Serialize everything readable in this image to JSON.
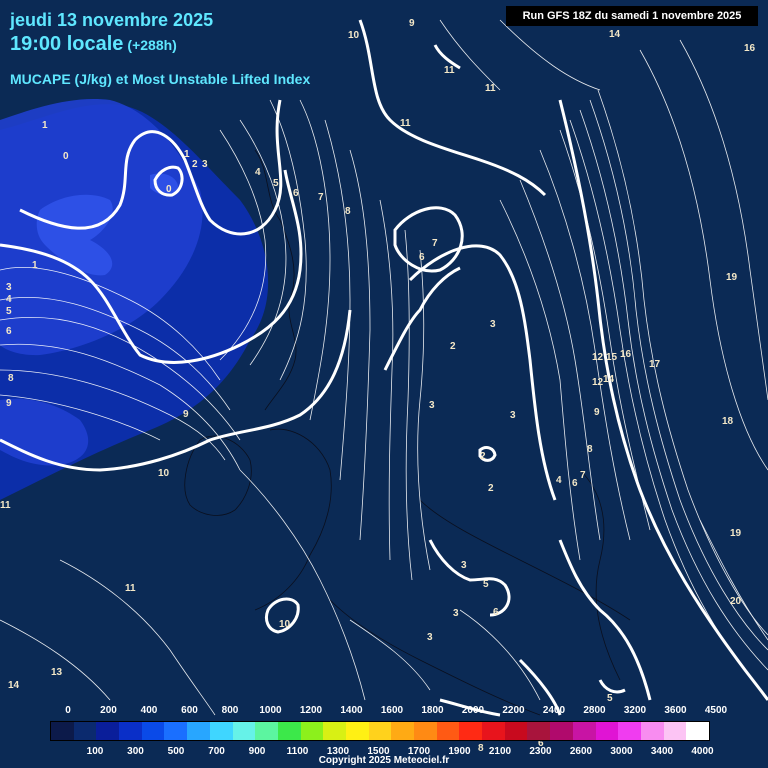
{
  "header": {
    "date": "jeudi 13 novembre 2025",
    "time": "19:00 locale",
    "offset": "(+288h)",
    "field": "MUCAPE (J/kg) et Most Unstable Lifted Index",
    "run": "Run GFS 18Z du samedi 1 novembre 2025"
  },
  "colors": {
    "background": "#0b2a55",
    "title_text": "#5fe7ff",
    "contour": "#ffffff",
    "cape_low": "#0d2fb8",
    "cape_mid": "#1f3fcf",
    "cape_high": "#2d50e6"
  },
  "legend": {
    "top_labels": [
      "0",
      "200",
      "400",
      "600",
      "800",
      "1000",
      "1200",
      "1400",
      "1600",
      "1800",
      "2000",
      "2200",
      "2400",
      "2800",
      "3200",
      "3600",
      "4500"
    ],
    "bottom_labels": [
      "100",
      "300",
      "500",
      "700",
      "900",
      "1100",
      "1300",
      "1500",
      "1700",
      "1900",
      "2100",
      "2300",
      "2600",
      "3000",
      "3400",
      "4000"
    ],
    "swatches": [
      "#0c1a4a",
      "#0b2a6e",
      "#0a1e9a",
      "#0a2fc8",
      "#0a4ae8",
      "#1a6fff",
      "#28a6ff",
      "#3fd6ff",
      "#66f2e8",
      "#5cf5a0",
      "#3ce84a",
      "#8cf01c",
      "#d8f014",
      "#fff014",
      "#ffd21c",
      "#ffaa14",
      "#ff8a14",
      "#ff5a14",
      "#ff2a14",
      "#e8141c",
      "#c80a1e",
      "#a8143c",
      "#b00a6c",
      "#c814a4",
      "#e014d4",
      "#f03cf0",
      "#f88cf0",
      "#fcc4f4",
      "#ffffff"
    ]
  },
  "contour_labels": [
    {
      "text": "1"
    },
    {
      "text": "0"
    },
    {
      "text": "0"
    },
    {
      "text": "1"
    },
    {
      "text": "2"
    },
    {
      "text": "3"
    },
    {
      "text": "4"
    },
    {
      "text": "5"
    },
    {
      "text": "6"
    },
    {
      "text": "7"
    },
    {
      "text": "8"
    },
    {
      "text": "1"
    },
    {
      "text": "3"
    },
    {
      "text": "4"
    },
    {
      "text": "5"
    },
    {
      "text": "6"
    },
    {
      "text": "8"
    },
    {
      "text": "9"
    },
    {
      "text": "9"
    },
    {
      "text": "10"
    },
    {
      "text": "11"
    },
    {
      "text": "11"
    },
    {
      "text": "13"
    },
    {
      "text": "14"
    },
    {
      "text": "10"
    },
    {
      "text": "9"
    },
    {
      "text": "11"
    },
    {
      "text": "11"
    },
    {
      "text": "11"
    },
    {
      "text": "7"
    },
    {
      "text": "6"
    },
    {
      "text": "3"
    },
    {
      "text": "2"
    },
    {
      "text": "3"
    },
    {
      "text": "3"
    },
    {
      "text": "2"
    },
    {
      "text": "2"
    },
    {
      "text": "3"
    },
    {
      "text": "3"
    },
    {
      "text": "3"
    },
    {
      "text": "4"
    },
    {
      "text": "5"
    },
    {
      "text": "6"
    },
    {
      "text": "6"
    },
    {
      "text": "7"
    },
    {
      "text": "8"
    },
    {
      "text": "9"
    },
    {
      "text": "12"
    },
    {
      "text": "12"
    },
    {
      "text": "14"
    },
    {
      "text": "15"
    },
    {
      "text": "16"
    },
    {
      "text": "17"
    },
    {
      "text": "18"
    },
    {
      "text": "19"
    },
    {
      "text": "19"
    },
    {
      "text": "20"
    },
    {
      "text": "14"
    },
    {
      "text": "16"
    },
    {
      "text": "5"
    },
    {
      "text": "10"
    },
    {
      "text": "8"
    },
    {
      "text": "6"
    }
  ],
  "copyright": "Copyright 2025 Meteociel.fr"
}
